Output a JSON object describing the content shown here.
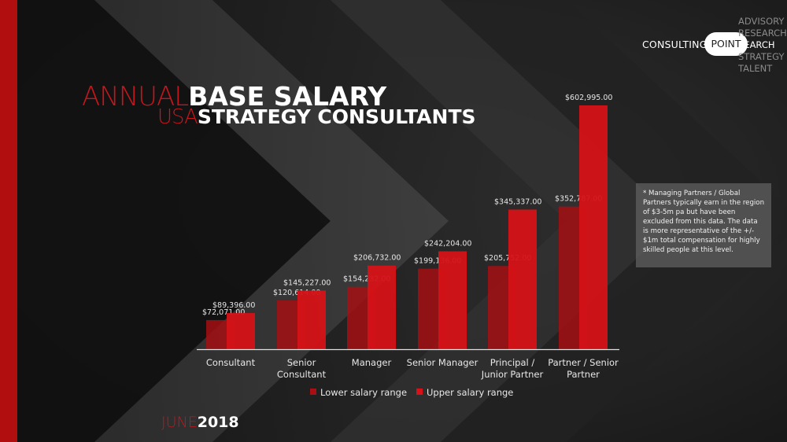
{
  "title": {
    "line1_red": "ANNUAL",
    "line1_white": "BASE SALARY",
    "line2_red": "USA",
    "line2_white": "STRATEGY CONSULTANTS"
  },
  "logo": {
    "consulting": "CONSULTING",
    "point": "POINT",
    "services": [
      "ADVISORY",
      "RESEARCH",
      "SEARCH",
      "STRATEGY",
      "TALENT"
    ],
    "active_service": "SEARCH"
  },
  "note": "* Managing Partners / Global Partners typically earn in the region of $3-5m pa but have been excluded from this data. The data is more representative of the +/- $1m total compensation for highly skilled people at this level.",
  "date": {
    "red": "JUNE",
    "white": "2018"
  },
  "colors": {
    "lower": "#a80f12",
    "upper": "#d41217",
    "accent": "#c4161c"
  },
  "chart_data": {
    "type": "bar",
    "categories": [
      [
        "Consultant"
      ],
      [
        "Senior",
        "Consultant"
      ],
      [
        "Manager"
      ],
      [
        "Senior Manager"
      ],
      [
        "Principal /",
        "Junior Partner"
      ],
      [
        "Partner / Senior",
        "Partner"
      ]
    ],
    "series": [
      {
        "name": "Lower salary range",
        "values": [
          72071,
          120614,
          154232,
          199136,
          205752,
          352787
        ],
        "labels": [
          "$72,071.00",
          "$120,614.00",
          "$154,232.00",
          "$199,136.00",
          "$205,752.00",
          "$352,787.00"
        ]
      },
      {
        "name": "Upper salary range",
        "values": [
          89396,
          145227,
          206732,
          242204,
          345337,
          602995
        ],
        "labels": [
          "$89,396.00",
          "$145,227.00",
          "$206,732.00",
          "$242,204.00",
          "$345,337.00",
          "$602,995.00"
        ]
      }
    ],
    "ylim": [
      0,
      602995
    ],
    "legend_position": "bottom",
    "grid": false
  }
}
